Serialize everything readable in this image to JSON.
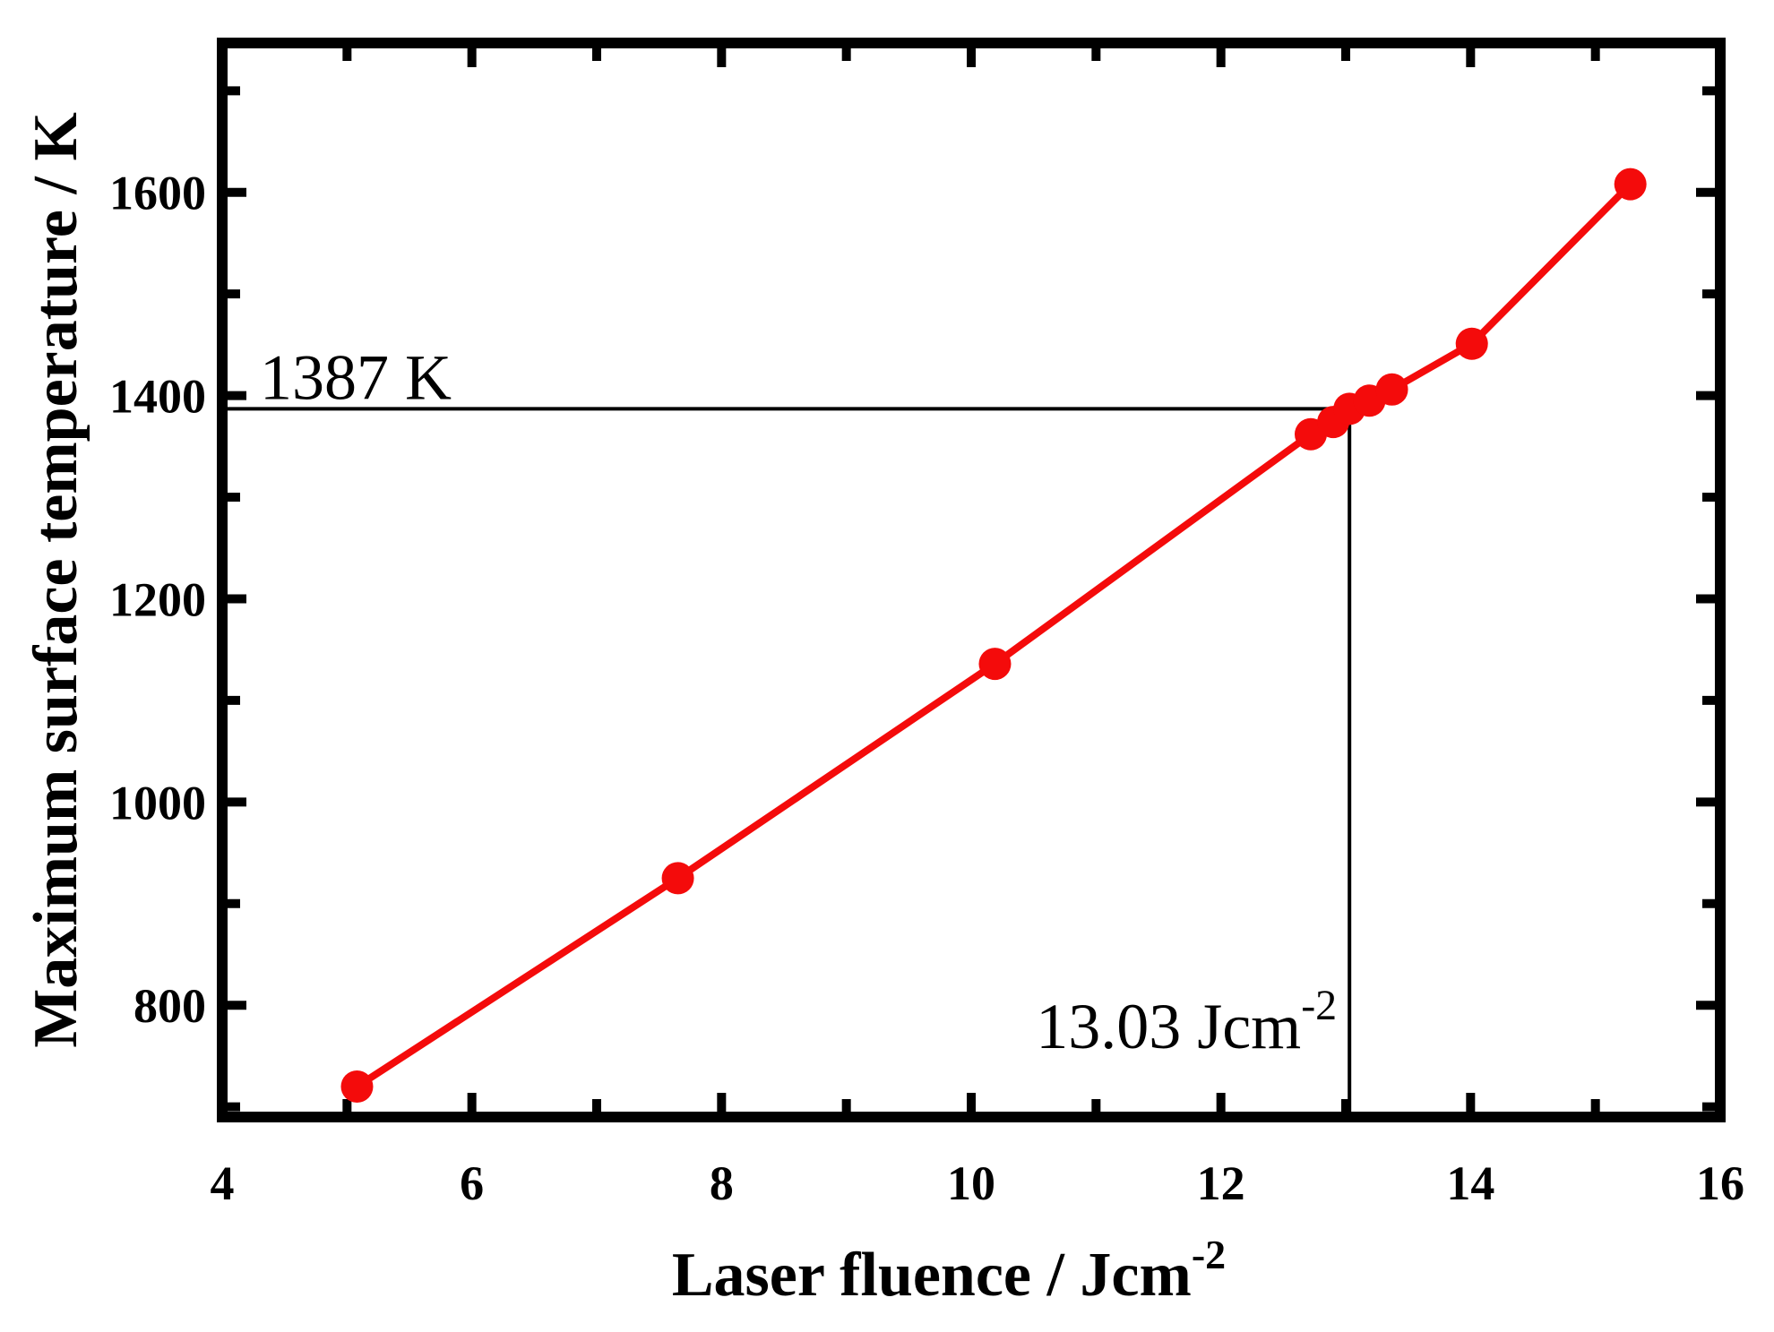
{
  "figure": {
    "background_color": "#ffffff",
    "axis_color": "#000000",
    "text_color": "#000000"
  },
  "chart_data": {
    "type": "line",
    "title": "",
    "xlabel_base": "Laser fluence  /  Jcm",
    "xlabel_sup": "-2",
    "ylabel": "Maximum surface temperature  /  K",
    "xlim": [
      4,
      16
    ],
    "ylim": [
      690,
      1747
    ],
    "x_major_ticks": [
      4,
      6,
      8,
      10,
      12,
      14,
      16
    ],
    "x_minor_ticks": [
      5,
      7,
      9,
      11,
      13,
      15
    ],
    "y_major_ticks": [
      800,
      1000,
      1200,
      1400,
      1600
    ],
    "y_minor_ticks": [
      700,
      900,
      1100,
      1300,
      1500,
      1700
    ],
    "grid": false,
    "legend": "none",
    "series": [
      {
        "name": "maximum-surface-temperature",
        "color": "#f40b0b",
        "marker": "circle",
        "x": [
          5.08,
          7.65,
          10.19,
          12.72,
          12.9,
          13.03,
          13.19,
          13.37,
          14.01,
          15.28
        ],
        "y": [
          720,
          925,
          1136,
          1362,
          1374,
          1387,
          1395,
          1406,
          1451,
          1608
        ]
      }
    ],
    "annotations": {
      "hline": {
        "y": 1387,
        "x_from": 4,
        "x_to": 13.03,
        "label": "1387 K"
      },
      "vline": {
        "x": 13.03,
        "y_from": 690,
        "y_to": 1387,
        "label_base": "13.03 Jcm",
        "label_sup": "-2"
      },
      "line_color": "#000000"
    }
  }
}
